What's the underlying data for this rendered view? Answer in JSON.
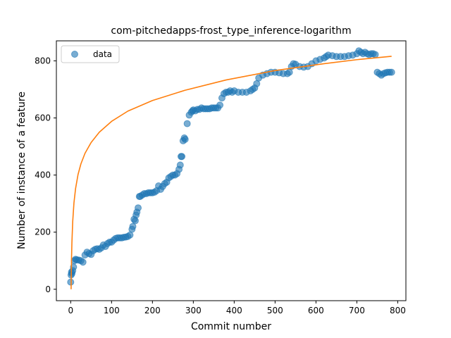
{
  "chart_data": {
    "type": "scatter",
    "title": "com-pitchedapps-frost_type_inference-logarithm",
    "xlabel": "Commit number",
    "ylabel": "Number of instance of a feature",
    "xlim": [
      -35,
      820
    ],
    "ylim": [
      -40,
      870
    ],
    "xticks": [
      0,
      100,
      200,
      300,
      400,
      500,
      600,
      700,
      800
    ],
    "yticks": [
      0,
      200,
      400,
      600,
      800
    ],
    "grid": false,
    "legend_position": "upper left",
    "series": [
      {
        "name": "data",
        "kind": "scatter",
        "color": "#1f77b4",
        "x": [
          0,
          1,
          2,
          3,
          5,
          7,
          9,
          12,
          15,
          20,
          25,
          30,
          35,
          40,
          45,
          50,
          55,
          60,
          65,
          70,
          75,
          80,
          85,
          90,
          95,
          100,
          105,
          110,
          115,
          120,
          125,
          130,
          135,
          140,
          145,
          150,
          152,
          155,
          158,
          160,
          162,
          165,
          168,
          170,
          175,
          180,
          185,
          190,
          195,
          200,
          205,
          210,
          215,
          220,
          225,
          230,
          235,
          240,
          245,
          250,
          255,
          260,
          265,
          268,
          270,
          272,
          275,
          278,
          280,
          285,
          290,
          295,
          298,
          300,
          305,
          310,
          315,
          320,
          325,
          330,
          335,
          340,
          345,
          350,
          355,
          360,
          365,
          370,
          375,
          380,
          385,
          390,
          395,
          400,
          410,
          420,
          430,
          440,
          445,
          450,
          455,
          460,
          470,
          480,
          490,
          500,
          510,
          520,
          530,
          535,
          540,
          545,
          550,
          560,
          570,
          580,
          590,
          600,
          610,
          620,
          625,
          630,
          640,
          650,
          660,
          670,
          680,
          690,
          700,
          705,
          710,
          715,
          720,
          725,
          730,
          735,
          740,
          745,
          750,
          755,
          760,
          765,
          770,
          775,
          780,
          785
        ],
        "y": [
          25,
          50,
          60,
          55,
          65,
          78,
          100,
          105,
          103,
          102,
          100,
          95,
          120,
          130,
          125,
          122,
          135,
          140,
          142,
          140,
          145,
          155,
          150,
          160,
          165,
          165,
          172,
          178,
          180,
          180,
          180,
          182,
          183,
          185,
          190,
          210,
          220,
          245,
          240,
          260,
          270,
          285,
          325,
          325,
          330,
          335,
          335,
          338,
          338,
          338,
          340,
          345,
          362,
          350,
          360,
          370,
          375,
          390,
          395,
          400,
          400,
          405,
          420,
          435,
          465,
          465,
          520,
          530,
          525,
          580,
          610,
          620,
          625,
          628,
          625,
          630,
          630,
          635,
          632,
          632,
          632,
          632,
          635,
          635,
          635,
          635,
          645,
          670,
          685,
          690,
          690,
          695,
          690,
          695,
          690,
          690,
          690,
          695,
          700,
          705,
          720,
          740,
          750,
          755,
          760,
          760,
          758,
          755,
          755,
          760,
          780,
          790,
          788,
          780,
          778,
          780,
          790,
          800,
          805,
          810,
          815,
          820,
          818,
          815,
          815,
          815,
          818,
          820,
          825,
          835,
          830,
          825,
          830,
          825,
          822,
          825,
          825,
          822,
          760,
          755,
          750,
          755,
          758,
          760,
          760,
          760
        ]
      },
      {
        "name": "",
        "kind": "line",
        "color": "#ff7f0e",
        "model": "logarithm",
        "x": [
          1,
          2,
          3,
          5,
          8,
          12,
          18,
          25,
          35,
          50,
          70,
          100,
          140,
          200,
          280,
          380,
          500,
          620,
          700,
          785
        ],
        "y": [
          0,
          103,
          163,
          238,
          303,
          353,
          402,
          439,
          476,
          514,
          550,
          588,
          624,
          661,
          697,
          733,
          766,
          790,
          804,
          816
        ]
      }
    ]
  }
}
